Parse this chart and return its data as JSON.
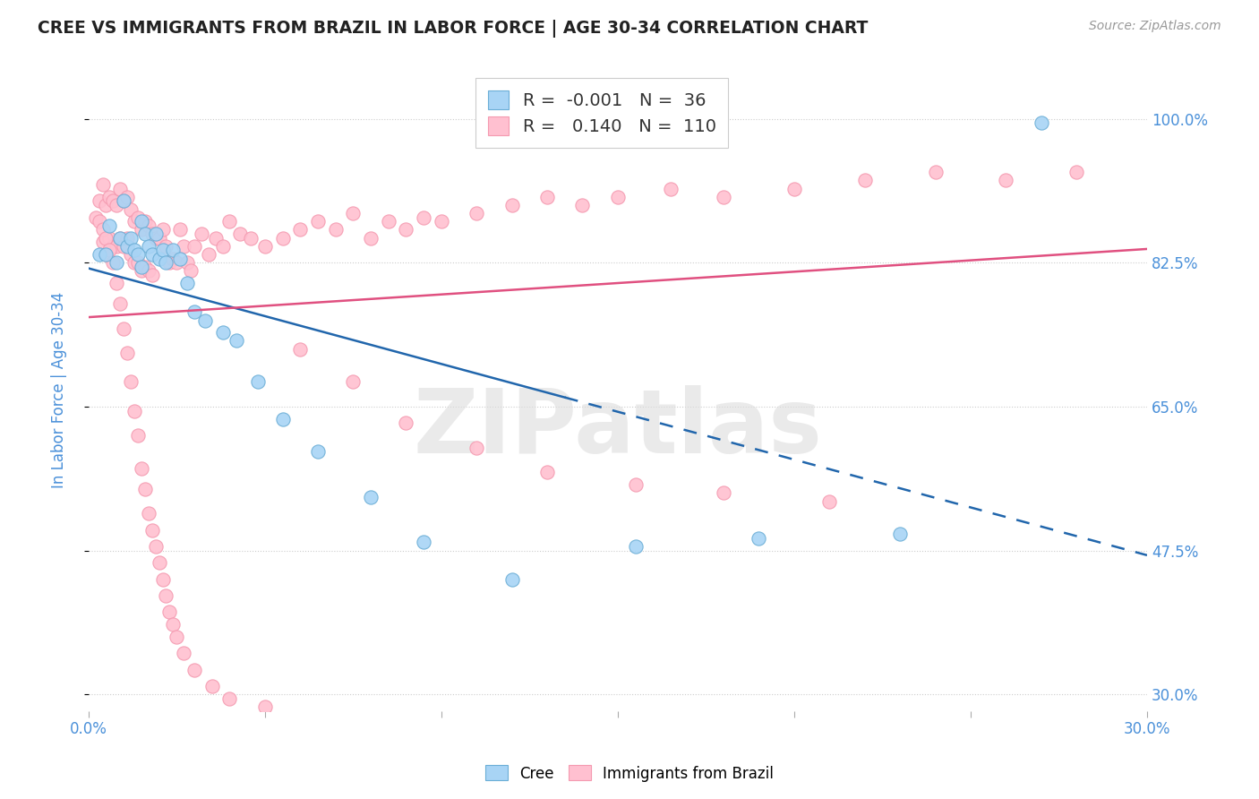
{
  "title": "CREE VS IMMIGRANTS FROM BRAZIL IN LABOR FORCE | AGE 30-34 CORRELATION CHART",
  "source_text": "Source: ZipAtlas.com",
  "ylabel": "In Labor Force | Age 30-34",
  "xlim": [
    0.0,
    0.3
  ],
  "ylim": [
    0.28,
    1.06
  ],
  "cree_color": "#a8d4f5",
  "cree_edge_color": "#6baed6",
  "brazil_color": "#ffc0d0",
  "brazil_edge_color": "#f49ab0",
  "cree_line_color": "#2166ac",
  "brazil_line_color": "#e05080",
  "legend_R_cree": "-0.001",
  "legend_N_cree": "36",
  "legend_R_brazil": "0.140",
  "legend_N_brazil": "110",
  "watermark_text": "ZIPatlas",
  "background_color": "#ffffff",
  "grid_color": "#cccccc",
  "title_color": "#222222",
  "axis_label_color": "#4a90d9",
  "ytick_vals": [
    0.3,
    0.475,
    0.65,
    0.825,
    1.0
  ],
  "ytick_labs": [
    "30.0%",
    "47.5%",
    "65.0%",
    "82.5%",
    "100.0%"
  ],
  "cree_x": [
    0.003,
    0.005,
    0.006,
    0.008,
    0.009,
    0.01,
    0.011,
    0.012,
    0.013,
    0.014,
    0.015,
    0.015,
    0.016,
    0.017,
    0.018,
    0.019,
    0.02,
    0.021,
    0.022,
    0.024,
    0.026,
    0.028,
    0.03,
    0.033,
    0.038,
    0.042,
    0.048,
    0.055,
    0.065,
    0.08,
    0.095,
    0.12,
    0.155,
    0.19,
    0.23,
    0.27
  ],
  "cree_y": [
    0.835,
    0.835,
    0.87,
    0.825,
    0.855,
    0.9,
    0.845,
    0.855,
    0.84,
    0.835,
    0.82,
    0.875,
    0.86,
    0.845,
    0.835,
    0.86,
    0.83,
    0.84,
    0.825,
    0.84,
    0.83,
    0.8,
    0.765,
    0.755,
    0.74,
    0.73,
    0.68,
    0.635,
    0.595,
    0.54,
    0.485,
    0.44,
    0.48,
    0.49,
    0.495,
    0.995
  ],
  "brazil_x": [
    0.002,
    0.003,
    0.004,
    0.004,
    0.005,
    0.005,
    0.006,
    0.006,
    0.007,
    0.007,
    0.008,
    0.008,
    0.009,
    0.009,
    0.01,
    0.01,
    0.011,
    0.011,
    0.012,
    0.012,
    0.013,
    0.013,
    0.014,
    0.014,
    0.015,
    0.015,
    0.016,
    0.016,
    0.017,
    0.017,
    0.018,
    0.018,
    0.019,
    0.02,
    0.021,
    0.022,
    0.023,
    0.024,
    0.025,
    0.026,
    0.027,
    0.028,
    0.029,
    0.03,
    0.032,
    0.034,
    0.036,
    0.038,
    0.04,
    0.043,
    0.046,
    0.05,
    0.055,
    0.06,
    0.065,
    0.07,
    0.075,
    0.08,
    0.085,
    0.09,
    0.095,
    0.1,
    0.11,
    0.12,
    0.13,
    0.14,
    0.15,
    0.165,
    0.18,
    0.2,
    0.22,
    0.24,
    0.26,
    0.28,
    0.003,
    0.004,
    0.005,
    0.006,
    0.007,
    0.008,
    0.009,
    0.01,
    0.011,
    0.012,
    0.013,
    0.014,
    0.015,
    0.016,
    0.017,
    0.018,
    0.019,
    0.02,
    0.021,
    0.022,
    0.023,
    0.024,
    0.025,
    0.027,
    0.03,
    0.035,
    0.04,
    0.05,
    0.06,
    0.075,
    0.09,
    0.11,
    0.13,
    0.155,
    0.18,
    0.21
  ],
  "brazil_y": [
    0.88,
    0.9,
    0.92,
    0.85,
    0.895,
    0.835,
    0.905,
    0.855,
    0.9,
    0.845,
    0.895,
    0.845,
    0.915,
    0.855,
    0.9,
    0.845,
    0.905,
    0.855,
    0.89,
    0.835,
    0.875,
    0.825,
    0.88,
    0.825,
    0.865,
    0.815,
    0.875,
    0.82,
    0.87,
    0.815,
    0.86,
    0.81,
    0.855,
    0.855,
    0.865,
    0.845,
    0.825,
    0.83,
    0.825,
    0.865,
    0.845,
    0.825,
    0.815,
    0.845,
    0.86,
    0.835,
    0.855,
    0.845,
    0.875,
    0.86,
    0.855,
    0.845,
    0.855,
    0.865,
    0.875,
    0.865,
    0.885,
    0.855,
    0.875,
    0.865,
    0.88,
    0.875,
    0.885,
    0.895,
    0.905,
    0.895,
    0.905,
    0.915,
    0.905,
    0.915,
    0.925,
    0.935,
    0.925,
    0.935,
    0.875,
    0.865,
    0.855,
    0.84,
    0.825,
    0.8,
    0.775,
    0.745,
    0.715,
    0.68,
    0.645,
    0.615,
    0.575,
    0.55,
    0.52,
    0.5,
    0.48,
    0.46,
    0.44,
    0.42,
    0.4,
    0.385,
    0.37,
    0.35,
    0.33,
    0.31,
    0.295,
    0.285,
    0.72,
    0.68,
    0.63,
    0.6,
    0.57,
    0.555,
    0.545,
    0.535
  ]
}
